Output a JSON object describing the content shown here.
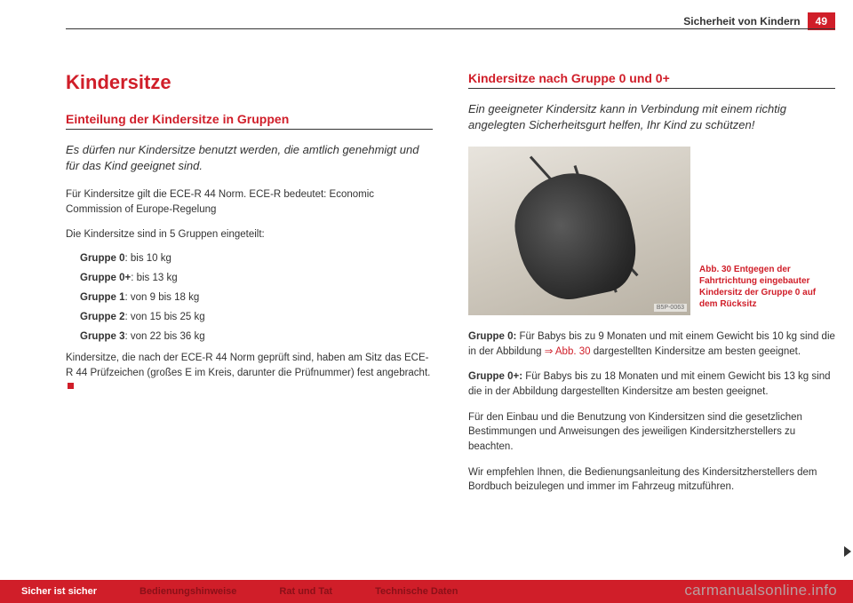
{
  "header": {
    "section_title": "Sicherheit von Kindern",
    "page_number": "49"
  },
  "left": {
    "h1": "Kindersitze",
    "h2": "Einteilung der Kindersitze in Gruppen",
    "lead": "Es dürfen nur Kindersitze benutzt werden, die amtlich genehmigt und für das Kind geeignet sind.",
    "p1": "Für Kindersitze gilt die ECE-R 44 Norm. ECE-R bedeutet: Economic Commission of Europe-Regelung",
    "p2": "Die Kindersitze sind in 5 Gruppen eingeteilt:",
    "groups": [
      {
        "label": "Gruppe 0",
        "text": ": bis 10 kg"
      },
      {
        "label": "Gruppe 0+",
        "text": ": bis 13 kg"
      },
      {
        "label": "Gruppe 1",
        "text": ": von 9 bis 18 kg"
      },
      {
        "label": "Gruppe 2",
        "text": ": von 15 bis 25 kg"
      },
      {
        "label": "Gruppe 3",
        "text": ": von 22 bis 36 kg"
      }
    ],
    "p3": "Kindersitze, die nach der ECE-R 44 Norm geprüft sind, haben am Sitz das ECE-R 44 Prüfzeichen (großes E im Kreis, darunter die Prüfnummer) fest angebracht."
  },
  "right": {
    "h2": "Kindersitze nach Gruppe 0 und 0+",
    "lead": "Ein geeigneter Kindersitz kann in Verbindung mit einem richtig angelegten Sicherheitsgurt helfen, Ihr Kind zu schützen!",
    "fig": {
      "code": "B5P-0063",
      "caption": "Abb. 30   Entgegen der Fahrtrichtung eingebauter Kindersitz der Gruppe 0 auf dem Rücksitz"
    },
    "p1a": "Gruppe 0:",
    "p1b": " Für Babys bis zu 9 Monaten und mit einem Gewicht bis 10 kg sind die in der Abbildung ",
    "p1_link": "⇒ Abb. 30",
    "p1c": " dargestellten Kindersitze am besten geeignet.",
    "p2a": "Gruppe 0+:",
    "p2b": " Für Babys bis zu 18 Monaten und mit einem Gewicht bis 13 kg sind die in der Abbildung dargestellten Kindersitze am besten geeignet.",
    "p3": "Für den Einbau und die Benutzung von Kindersitzen sind die gesetzlichen Bestimmungen und Anweisungen des jeweiligen Kindersitzherstellers zu beachten.",
    "p4": "Wir empfehlen Ihnen, die Bedienungsanleitung des Kindersitzherstellers dem Bordbuch beizulegen und immer im Fahrzeug mitzuführen."
  },
  "footer": {
    "tab1": "Sicher ist sicher",
    "tab2": "Bedienungshinweise",
    "tab3": "Rat und Tat",
    "tab4": "Technische Daten"
  },
  "watermark": "carmanualsonline.info"
}
